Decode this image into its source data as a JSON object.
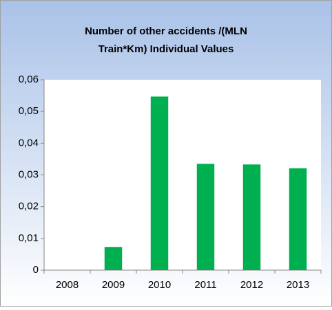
{
  "chart_data": {
    "type": "bar",
    "title": [
      "Number of  other accidents /(MLN",
      "Train*Km)    Individual Values"
    ],
    "categories": [
      "2008",
      "2009",
      "2010",
      "2011",
      "2012",
      "2013"
    ],
    "values": [
      0,
      0.0073,
      0.0547,
      0.0335,
      0.0333,
      0.0321
    ],
    "color": "#00b050",
    "ylim": [
      0,
      0.06
    ],
    "yticks": [
      0,
      {
        "value": 0.01,
        "label": "0,01"
      },
      {
        "value": 0.02,
        "label": "0,02"
      },
      {
        "value": 0.03,
        "label": "0,03"
      },
      {
        "value": 0.04,
        "label": "0,04"
      },
      {
        "value": 0.05,
        "label": "0,05"
      },
      {
        "value": 0.06,
        "label": "0,06"
      }
    ],
    "grid": false
  }
}
